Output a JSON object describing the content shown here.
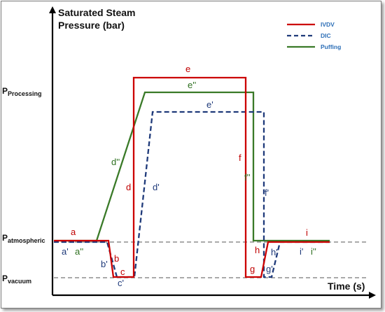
{
  "y_axis": {
    "title_line1": "Saturated Steam",
    "title_line2": "Pressure (bar)",
    "levels": [
      {
        "main": "P",
        "sub": "Processing"
      },
      {
        "main": "P",
        "sub": "atmospheric"
      },
      {
        "main": "P",
        "sub": "vacuum"
      }
    ]
  },
  "x_axis": {
    "title": "Time (s)"
  },
  "legend": [
    {
      "label": "IVDV",
      "color": "#cc0000",
      "style": "solid"
    },
    {
      "label": "DIC",
      "color": "#1f3a7a",
      "style": "dashed"
    },
    {
      "label": "Puffing",
      "color": "#3a7a28",
      "style": "solid"
    }
  ],
  "segments": {
    "ivdv": [
      "a",
      "b",
      "c",
      "d",
      "e",
      "f",
      "g",
      "h",
      "i"
    ],
    "dic": [
      "a'",
      "b'",
      "c'",
      "d'",
      "e'",
      "f'",
      "g'",
      "h'",
      "i'"
    ],
    "puffing": [
      "a''",
      "d''",
      "e''",
      "f''",
      "i''"
    ]
  },
  "colors": {
    "ivdv": "#cc0000",
    "dic": "#1f3a7a",
    "puffing": "#3a7a28",
    "reference": "#555555",
    "axis": "#000000"
  }
}
